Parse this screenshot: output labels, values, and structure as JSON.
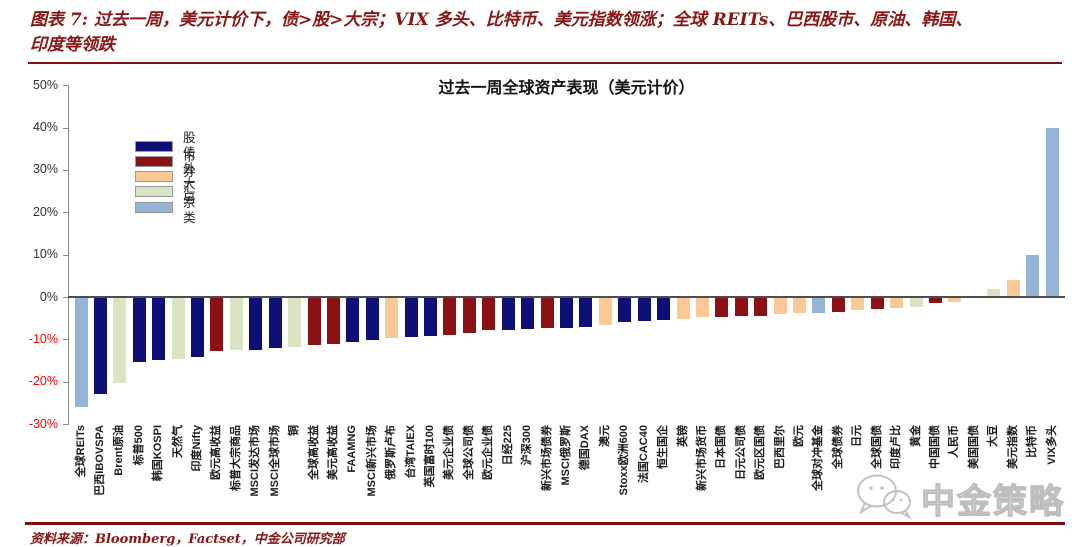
{
  "header": {
    "title_line1": "图表 7:  过去一周，美元计价下，债>股>大宗；VIX 多头、比特币、美元指数领涨；全球 REITs、巴西股市、原油、韩国、",
    "title_line2": "印度等领跌"
  },
  "source": {
    "text": "资料来源：Bloomberg，Factset，中金公司研究部"
  },
  "watermark": {
    "text": "中金策略",
    "icon": "wechat-chat-bubbles-icon"
  },
  "colors": {
    "maroon_text": "#8a1413",
    "rule": "#7f1112",
    "negative_tick": "#ff0000",
    "axis": "#8c8c8c",
    "zero_line": "#4d4d4d"
  },
  "chart_data": {
    "type": "bar",
    "title": "过去一周全球资产表现（美元计价）",
    "xlabel": "",
    "ylabel": "",
    "ylim": [
      -30,
      50
    ],
    "yticks": [
      50,
      40,
      30,
      20,
      10,
      0,
      -10,
      -20,
      -30
    ],
    "grid": false,
    "legend_position": "upper-left-inside",
    "legend": [
      {
        "label": "股市",
        "key": "equity",
        "color": "#0f0f78"
      },
      {
        "label": "债券",
        "key": "bond",
        "color": "#8c1114"
      },
      {
        "label": "外汇",
        "key": "fx",
        "color": "#fbc996"
      },
      {
        "label": "大宗",
        "key": "cmdty",
        "color": "#d8e4c2"
      },
      {
        "label": "另类",
        "key": "alt",
        "color": "#95b5d8"
      }
    ],
    "items": [
      {
        "label": "全球REITs",
        "value": -26.0,
        "type": "alt"
      },
      {
        "label": "巴西IBOVSPA",
        "value": -22.8,
        "type": "equity"
      },
      {
        "label": "Brent原油",
        "value": -20.4,
        "type": "cmdty"
      },
      {
        "label": "标普500",
        "value": -15.3,
        "type": "equity"
      },
      {
        "label": "韩国KOSPI",
        "value": -14.8,
        "type": "equity"
      },
      {
        "label": "天然气",
        "value": -14.6,
        "type": "cmdty"
      },
      {
        "label": "印度Nifty",
        "value": -14.2,
        "type": "equity"
      },
      {
        "label": "欧元高收益",
        "value": -12.8,
        "type": "bond"
      },
      {
        "label": "标普大宗商品",
        "value": -12.6,
        "type": "cmdty"
      },
      {
        "label": "MSCI发达市场",
        "value": -12.4,
        "type": "equity"
      },
      {
        "label": "MSCI全球市场",
        "value": -12.1,
        "type": "equity"
      },
      {
        "label": "铜",
        "value": -11.8,
        "type": "cmdty"
      },
      {
        "label": "全球高收益",
        "value": -11.4,
        "type": "bond"
      },
      {
        "label": "美元高收益",
        "value": -11.0,
        "type": "bond"
      },
      {
        "label": "FAAMNG",
        "value": -10.6,
        "type": "equity"
      },
      {
        "label": "MSCI新兴市场",
        "value": -10.2,
        "type": "equity"
      },
      {
        "label": "俄罗斯卢布",
        "value": -9.6,
        "type": "fx"
      },
      {
        "label": "台湾TAIEX",
        "value": -9.5,
        "type": "equity"
      },
      {
        "label": "英国富时100",
        "value": -9.3,
        "type": "equity"
      },
      {
        "label": "美元企业债",
        "value": -9.0,
        "type": "bond"
      },
      {
        "label": "全球公司债",
        "value": -8.4,
        "type": "bond"
      },
      {
        "label": "欧元企业债",
        "value": -7.9,
        "type": "bond"
      },
      {
        "label": "日经225",
        "value": -7.7,
        "type": "equity"
      },
      {
        "label": "沪深300",
        "value": -7.5,
        "type": "equity"
      },
      {
        "label": "新兴市场债券",
        "value": -7.4,
        "type": "bond"
      },
      {
        "label": "MSCI俄罗斯",
        "value": -7.2,
        "type": "equity"
      },
      {
        "label": "德国DAX",
        "value": -7.0,
        "type": "equity"
      },
      {
        "label": "澳元",
        "value": -6.6,
        "type": "fx"
      },
      {
        "label": "Stoxx欧洲600",
        "value": -5.9,
        "type": "equity"
      },
      {
        "label": "法国CAC40",
        "value": -5.7,
        "type": "equity"
      },
      {
        "label": "恒生国企",
        "value": -5.5,
        "type": "equity"
      },
      {
        "label": "英镑",
        "value": -5.1,
        "type": "fx"
      },
      {
        "label": "新兴市场货币",
        "value": -4.8,
        "type": "fx"
      },
      {
        "label": "日本国债",
        "value": -4.7,
        "type": "bond"
      },
      {
        "label": "日元公司债",
        "value": -4.6,
        "type": "bond"
      },
      {
        "label": "欧元区国债",
        "value": -4.4,
        "type": "bond"
      },
      {
        "label": "巴西里尔",
        "value": -4.0,
        "type": "fx"
      },
      {
        "label": "欧元",
        "value": -3.8,
        "type": "fx"
      },
      {
        "label": "全球对冲基金",
        "value": -3.7,
        "type": "alt"
      },
      {
        "label": "全球债券",
        "value": -3.5,
        "type": "bond"
      },
      {
        "label": "日元",
        "value": -3.0,
        "type": "fx"
      },
      {
        "label": "全球国债",
        "value": -2.8,
        "type": "bond"
      },
      {
        "label": "印度卢比",
        "value": -2.6,
        "type": "fx"
      },
      {
        "label": "黄金",
        "value": -2.3,
        "type": "cmdty"
      },
      {
        "label": "中国国债",
        "value": -1.3,
        "type": "bond"
      },
      {
        "label": "人民币",
        "value": -1.2,
        "type": "fx"
      },
      {
        "label": "美国国债",
        "value": -0.3,
        "type": "bond"
      },
      {
        "label": "大豆",
        "value": 1.8,
        "type": "cmdty"
      },
      {
        "label": "美元指数",
        "value": 3.9,
        "type": "fx"
      },
      {
        "label": "比特币",
        "value": 9.8,
        "type": "alt"
      },
      {
        "label": "VIX多头",
        "value": 40.0,
        "type": "alt"
      }
    ]
  }
}
